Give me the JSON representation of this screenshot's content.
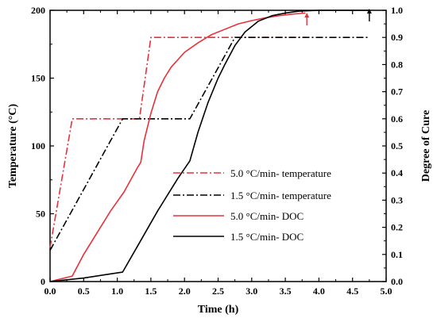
{
  "chart_data": {
    "type": "line",
    "xlabel": "Time (h)",
    "ylabel_left": "Temperature (°C)",
    "ylabel_right": "Degree of Cure",
    "xlim": [
      0.0,
      5.0
    ],
    "ylim_left": [
      0,
      200
    ],
    "ylim_right": [
      0.0,
      1.0
    ],
    "x_ticks": [
      "0.0",
      "0.5",
      "1.0",
      "1.5",
      "2.0",
      "2.5",
      "3.0",
      "3.5",
      "4.0",
      "4.5",
      "5.0"
    ],
    "y_left_ticks": [
      "0",
      "50",
      "100",
      "150",
      "200"
    ],
    "y_right_ticks": [
      "0.0",
      "0.1",
      "0.2",
      "0.3",
      "0.4",
      "0.5",
      "0.6",
      "0.7",
      "0.8",
      "0.9",
      "1.0"
    ],
    "grid": false,
    "legend_position": "center-right",
    "series": [
      {
        "name": "5.0 °C/min- temperature",
        "axis": "left",
        "color": "#e8303a",
        "dash": "dashdot",
        "points": [
          [
            0.0,
            25
          ],
          [
            0.33,
            120
          ],
          [
            1.33,
            120
          ],
          [
            1.5,
            180
          ],
          [
            3.8,
            180
          ]
        ]
      },
      {
        "name": "1.5 °C/min- temperature",
        "axis": "left",
        "color": "#000000",
        "dash": "dashdot",
        "points": [
          [
            0.0,
            23
          ],
          [
            1.08,
            120
          ],
          [
            2.08,
            120
          ],
          [
            2.75,
            180
          ],
          [
            4.75,
            180
          ]
        ]
      },
      {
        "name": "5.0 °C/min- DOC",
        "axis": "right",
        "color": "#e8303a",
        "dash": "solid",
        "points": [
          [
            0.0,
            0.0
          ],
          [
            0.33,
            0.02
          ],
          [
            0.5,
            0.1
          ],
          [
            0.7,
            0.18
          ],
          [
            0.9,
            0.26
          ],
          [
            1.1,
            0.33
          ],
          [
            1.3,
            0.42
          ],
          [
            1.35,
            0.44
          ],
          [
            1.4,
            0.52
          ],
          [
            1.5,
            0.62
          ],
          [
            1.6,
            0.7
          ],
          [
            1.7,
            0.75
          ],
          [
            1.8,
            0.79
          ],
          [
            2.0,
            0.845
          ],
          [
            2.2,
            0.88
          ],
          [
            2.4,
            0.91
          ],
          [
            2.6,
            0.93
          ],
          [
            2.8,
            0.95
          ],
          [
            3.0,
            0.962
          ],
          [
            3.2,
            0.972
          ],
          [
            3.4,
            0.98
          ],
          [
            3.6,
            0.986
          ],
          [
            3.8,
            0.99
          ]
        ]
      },
      {
        "name": "1.5 °C/min- DOC",
        "axis": "right",
        "color": "#000000",
        "dash": "solid",
        "points": [
          [
            0.0,
            0.0
          ],
          [
            0.5,
            0.013
          ],
          [
            1.08,
            0.035
          ],
          [
            1.3,
            0.13
          ],
          [
            1.6,
            0.26
          ],
          [
            1.9,
            0.38
          ],
          [
            2.08,
            0.445
          ],
          [
            2.2,
            0.55
          ],
          [
            2.35,
            0.66
          ],
          [
            2.5,
            0.75
          ],
          [
            2.6,
            0.8
          ],
          [
            2.75,
            0.87
          ],
          [
            2.9,
            0.92
          ],
          [
            3.1,
            0.96
          ],
          [
            3.3,
            0.98
          ],
          [
            3.5,
            0.99
          ],
          [
            3.7,
            0.997
          ],
          [
            4.0,
            1.0
          ],
          [
            4.75,
            1.0
          ]
        ]
      }
    ],
    "annotations": [
      {
        "type": "arrow-up",
        "x": 3.82,
        "y_right": 0.985,
        "color": "#e8303a"
      },
      {
        "type": "arrow-up",
        "x": 4.75,
        "y_right": 1.0,
        "color": "#000000"
      }
    ]
  }
}
